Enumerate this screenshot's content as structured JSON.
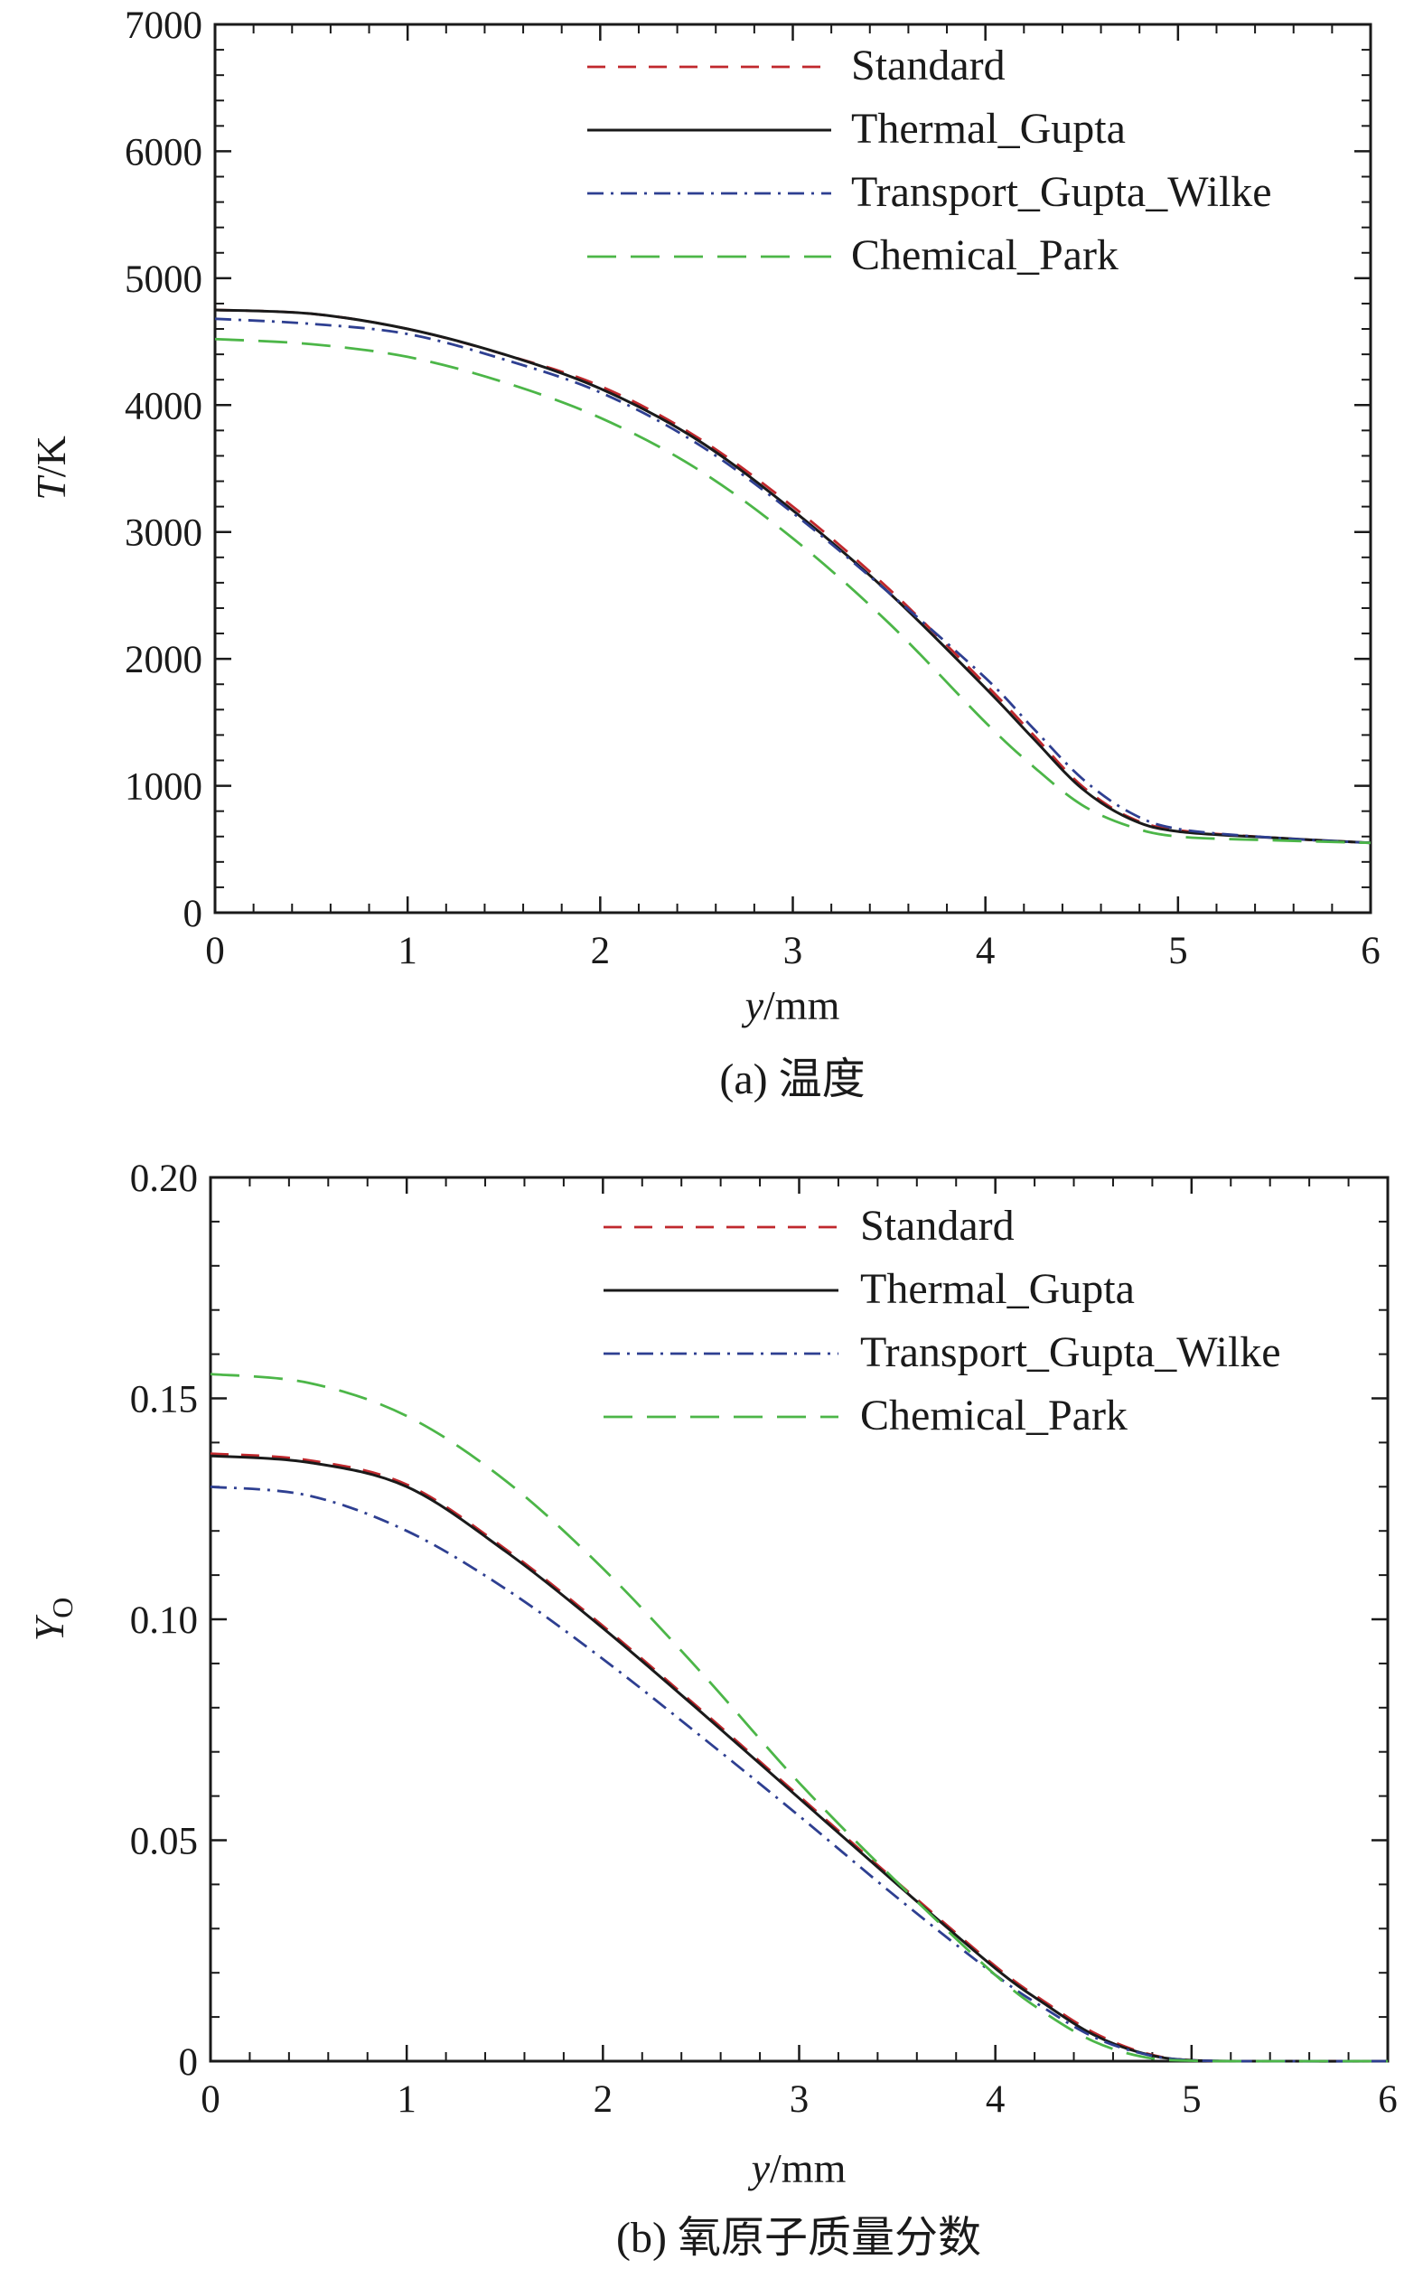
{
  "colors": {
    "standard": "#c0282d",
    "thermal": "#1a1a1a",
    "transport": "#2e3f91",
    "chemical": "#4cb648",
    "axis": "#1a1a1a"
  },
  "chart_data": [
    {
      "type": "line",
      "caption": "(a) 温度",
      "xlabel_var": "y",
      "xlabel_unit": "/mm",
      "ylabel_var": "T",
      "ylabel_unit": "/K",
      "xlim": [
        0,
        6
      ],
      "ylim": [
        0,
        7000
      ],
      "xticks": [
        0,
        1,
        2,
        3,
        4,
        5,
        6
      ],
      "xtick_labels": [
        "0",
        "1",
        "2",
        "3",
        "4",
        "5",
        "6"
      ],
      "yticks": [
        0,
        1000,
        2000,
        3000,
        4000,
        5000,
        6000,
        7000
      ],
      "ytick_labels": [
        "0",
        "1000",
        "2000",
        "3000",
        "4000",
        "5000",
        "6000",
        "7000"
      ],
      "grid": false,
      "legend_position": "top-right",
      "series": [
        {
          "name": "Standard",
          "style": "dashed",
          "color_key": "standard",
          "x": [
            0,
            0.5,
            1,
            1.5,
            2,
            2.5,
            3,
            3.5,
            4,
            4.25,
            4.5,
            4.75,
            5,
            5.5,
            6
          ],
          "y": [
            4750,
            4720,
            4600,
            4400,
            4150,
            3750,
            3200,
            2550,
            1800,
            1400,
            1000,
            750,
            650,
            590,
            550
          ]
        },
        {
          "name": "Thermal_Gupta",
          "style": "solid",
          "color_key": "thermal",
          "x": [
            0,
            0.5,
            1,
            1.5,
            2,
            2.5,
            3,
            3.5,
            4,
            4.25,
            4.5,
            4.75,
            5,
            5.5,
            6
          ],
          "y": [
            4750,
            4720,
            4600,
            4400,
            4130,
            3730,
            3170,
            2520,
            1770,
            1370,
            980,
            740,
            640,
            590,
            550
          ]
        },
        {
          "name": "Transport_Gupta_Wilke",
          "style": "dashdot",
          "color_key": "transport",
          "x": [
            0,
            0.5,
            1,
            1.5,
            2,
            2.5,
            3,
            3.5,
            4,
            4.25,
            4.5,
            4.75,
            5,
            5.5,
            6
          ],
          "y": [
            4680,
            4640,
            4560,
            4360,
            4100,
            3700,
            3150,
            2520,
            1850,
            1450,
            1060,
            790,
            660,
            590,
            550
          ]
        },
        {
          "name": "Chemical_Park",
          "style": "longdash",
          "color_key": "chemical",
          "x": [
            0,
            0.5,
            1,
            1.5,
            2,
            2.5,
            3,
            3.5,
            4,
            4.25,
            4.5,
            4.75,
            5,
            5.5,
            6
          ],
          "y": [
            4520,
            4480,
            4380,
            4180,
            3900,
            3500,
            2950,
            2280,
            1500,
            1150,
            850,
            680,
            600,
            570,
            550
          ]
        }
      ]
    },
    {
      "type": "line",
      "caption": "(b) 氧原子质量分数",
      "xlabel_var": "y",
      "xlabel_unit": "/mm",
      "ylabel_var": "Y",
      "ylabel_sub": "O",
      "xlim": [
        0,
        6
      ],
      "ylim": [
        0,
        0.2
      ],
      "xticks": [
        0,
        1,
        2,
        3,
        4,
        5,
        6
      ],
      "xtick_labels": [
        "0",
        "1",
        "2",
        "3",
        "4",
        "5",
        "6"
      ],
      "yticks": [
        0,
        0.05,
        0.1,
        0.15,
        0.2
      ],
      "ytick_labels": [
        "0",
        "0.05",
        "0.10",
        "0.15",
        "0.20"
      ],
      "grid": false,
      "legend_position": "top-right",
      "series": [
        {
          "name": "Standard",
          "style": "dashed",
          "color_key": "standard",
          "x": [
            0,
            0.5,
            1,
            1.5,
            2,
            2.5,
            3,
            3.5,
            4,
            4.25,
            4.5,
            4.75,
            5,
            5.5,
            6
          ],
          "y": [
            0.1375,
            0.136,
            0.1305,
            0.116,
            0.0985,
            0.0795,
            0.06,
            0.0405,
            0.0215,
            0.0135,
            0.0065,
            0.002,
            0.0002,
            0,
            0
          ]
        },
        {
          "name": "Thermal_Gupta",
          "style": "solid",
          "color_key": "thermal",
          "x": [
            0,
            0.5,
            1,
            1.5,
            2,
            2.5,
            3,
            3.5,
            4,
            4.25,
            4.5,
            4.75,
            5,
            5.5,
            6
          ],
          "y": [
            0.137,
            0.1355,
            0.13,
            0.1155,
            0.098,
            0.079,
            0.0595,
            0.04,
            0.021,
            0.013,
            0.006,
            0.0018,
            0.0002,
            0,
            0
          ]
        },
        {
          "name": "Transport_Gupta_Wilke",
          "style": "dashdot",
          "color_key": "transport",
          "x": [
            0,
            0.5,
            1,
            1.5,
            2,
            2.5,
            3,
            3.5,
            4,
            4.25,
            4.5,
            4.75,
            5,
            5.5,
            6
          ],
          "y": [
            0.13,
            0.128,
            0.12,
            0.107,
            0.091,
            0.0735,
            0.0555,
            0.037,
            0.0195,
            0.012,
            0.0055,
            0.0017,
            0.0002,
            0,
            0
          ]
        },
        {
          "name": "Chemical_Park",
          "style": "longdash",
          "color_key": "chemical",
          "x": [
            0,
            0.5,
            1,
            1.5,
            2,
            2.5,
            3,
            3.5,
            4,
            4.25,
            4.5,
            4.75,
            5,
            5.5,
            6
          ],
          "y": [
            0.1555,
            0.1535,
            0.146,
            0.1315,
            0.1115,
            0.088,
            0.063,
            0.0405,
            0.0195,
            0.011,
            0.0045,
            0.001,
            0.0001,
            0,
            0
          ]
        }
      ]
    }
  ]
}
